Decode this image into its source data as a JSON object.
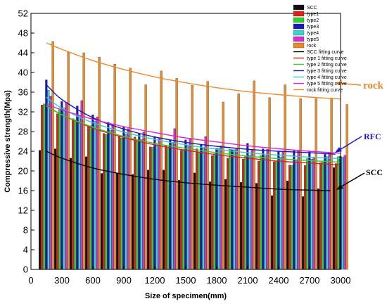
{
  "chart_data": {
    "type": "bar",
    "xlabel": "Size of specimen(mm)",
    "ylabel": "Compressive strength(Mpa)",
    "xlim": [
      0,
      3000
    ],
    "ylim": [
      0,
      52
    ],
    "x_ticks": [
      "0",
      "300",
      "600",
      "900",
      "1200",
      "1500",
      "1800",
      "2100",
      "2400",
      "2700",
      "3000"
    ],
    "y_ticks": [
      "0",
      "4",
      "8",
      "12",
      "16",
      "20",
      "24",
      "28",
      "32",
      "36",
      "40",
      "44",
      "48",
      "52"
    ],
    "x": [
      150,
      300,
      450,
      600,
      750,
      900,
      1050,
      1200,
      1350,
      1500,
      1650,
      1800,
      1950,
      2100,
      2250,
      2400,
      2550,
      2700,
      2850,
      3000
    ],
    "series": [
      {
        "name": "SCC",
        "color": "#111111",
        "values": [
          24.2,
          24.5,
          22.6,
          22.9,
          19.5,
          19.6,
          19.3,
          20.2,
          20.2,
          18.1,
          19.6,
          17.8,
          18.3,
          17.7,
          17.5,
          15.0,
          18.0,
          14.8,
          16.4,
          20.7
        ]
      },
      {
        "name": "type1",
        "color": "#e0201b",
        "values": [
          33.4,
          31.6,
          30.6,
          29.1,
          27.6,
          27.1,
          26.9,
          24.9,
          25.1,
          24.2,
          24.5,
          23.1,
          22.6,
          22.4,
          22.0,
          21.9,
          21.2,
          21.1,
          21.7,
          21.5
        ]
      },
      {
        "name": "type2",
        "color": "#2fd02f",
        "values": [
          33.6,
          32.6,
          30.4,
          29.2,
          27.4,
          26.7,
          26.2,
          24.8,
          24.9,
          24.3,
          23.9,
          23.5,
          24.4,
          22.9,
          23.1,
          21.9,
          21.1,
          22.5,
          22.0,
          22.9
        ]
      },
      {
        "name": "type3",
        "color": "#1a1ab8",
        "values": [
          38.5,
          34.1,
          33.2,
          31.4,
          29.9,
          28.9,
          27.6,
          27.0,
          26.3,
          26.3,
          25.4,
          24.6,
          24.3,
          25.6,
          24.5,
          24.0,
          24.1,
          23.9,
          23.4,
          23.0
        ]
      },
      {
        "name": "type4",
        "color": "#36d6cc",
        "values": [
          36.4,
          32.8,
          31.3,
          30.1,
          28.3,
          27.5,
          26.4,
          25.3,
          25.8,
          25.2,
          24.7,
          24.6,
          24.3,
          23.2,
          23.1,
          22.8,
          22.1,
          22.4,
          22.9,
          22.8
        ]
      },
      {
        "name": "type5",
        "color": "#d431d4",
        "values": [
          35.2,
          33.9,
          34.3,
          31.0,
          29.5,
          28.6,
          27.9,
          26.7,
          28.6,
          26.5,
          27.0,
          25.1,
          24.6,
          24.2,
          24.4,
          23.9,
          24.1,
          22.8,
          23.6,
          23.2
        ]
      },
      {
        "name": "rock",
        "color": "#e98a25",
        "values": [
          46.3,
          44.2,
          44.0,
          43.1,
          41.7,
          40.9,
          37.5,
          40.3,
          38.8,
          37.4,
          38.2,
          34.0,
          35.7,
          38.3,
          34.9,
          37.5,
          34.7,
          34.7,
          34.8,
          33.5
        ]
      }
    ],
    "fitting_curves": [
      {
        "name": "SCC fitting curve",
        "color": "#000000",
        "x": [
          150,
          300,
          600,
          900,
          1200,
          1500,
          1800,
          2100,
          2400,
          2700,
          2900
        ],
        "y": [
          24.0,
          22.6,
          20.6,
          19.3,
          18.3,
          17.6,
          17.1,
          16.7,
          16.3,
          16.1,
          16.0
        ]
      },
      {
        "name": "type 1 fitting curve",
        "color": "#e02020",
        "x": [
          150,
          300,
          600,
          900,
          1200,
          1500,
          1800,
          2100,
          2400,
          2700,
          3000
        ],
        "y": [
          33.3,
          31.4,
          28.7,
          26.8,
          25.3,
          24.2,
          23.3,
          22.6,
          22.0,
          21.6,
          21.2
        ]
      },
      {
        "name": "type 2 fitting curve",
        "color": "#30d030",
        "x": [
          150,
          300,
          600,
          900,
          1200,
          1500,
          1800,
          2100,
          2400,
          2700,
          3000
        ],
        "y": [
          33.2,
          31.4,
          28.9,
          27.0,
          25.6,
          24.6,
          23.7,
          23.0,
          22.5,
          22.1,
          21.8
        ]
      },
      {
        "name": "type 3 fitting curve",
        "color": "#1a1ab8",
        "x": [
          150,
          300,
          600,
          900,
          1200,
          1500,
          1800,
          2100,
          2400,
          2700,
          2950
        ],
        "y": [
          37.5,
          34.5,
          30.8,
          28.5,
          26.9,
          25.8,
          25.0,
          24.4,
          24.0,
          23.7,
          23.4
        ]
      },
      {
        "name": "type 4 fitting curve",
        "color": "#33cccc",
        "x": [
          150,
          300,
          600,
          900,
          1200,
          1500,
          1800,
          2100,
          2400,
          2700,
          3000
        ],
        "y": [
          35.0,
          32.7,
          29.8,
          27.9,
          26.4,
          25.3,
          24.4,
          23.7,
          23.2,
          22.8,
          22.5
        ]
      },
      {
        "name": "type 5 fitting curve",
        "color": "#e020e0",
        "x": [
          150,
          300,
          600,
          900,
          1200,
          1500,
          1800,
          2100,
          2400,
          2700,
          3000
        ],
        "y": [
          33.6,
          32.4,
          30.5,
          29.0,
          27.8,
          26.7,
          25.9,
          25.1,
          24.5,
          24.0,
          23.6
        ]
      },
      {
        "name": "rock fitting curve",
        "color": "#f08a2a",
        "x": [
          150,
          300,
          600,
          900,
          1200,
          1500,
          1800,
          2100,
          2400,
          2700,
          3000
        ],
        "y": [
          46.0,
          44.7,
          42.4,
          40.6,
          39.1,
          37.9,
          36.9,
          36.1,
          35.5,
          35.0,
          34.6
        ]
      }
    ],
    "annotations": [
      {
        "text": "rock",
        "color": "#e9862a"
      },
      {
        "text": "RFC",
        "color": "#1a1acc"
      },
      {
        "text": "SCC",
        "color": "#000000"
      }
    ],
    "legend": {
      "position": "top-right"
    },
    "grid": false
  }
}
